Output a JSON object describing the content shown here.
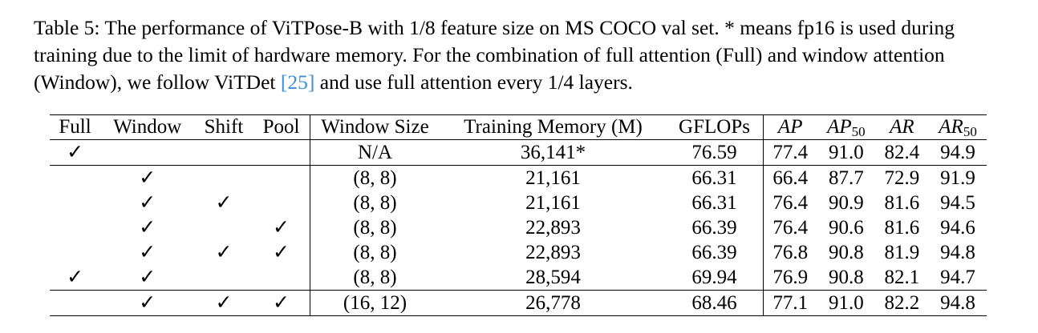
{
  "caption": {
    "prefix": "Table 5: The performance of ViTPose-B with 1/8 feature size on MS COCO val set. * means fp16 is used during training due to the limit of hardware memory. For the combination of full attention (Full) and window attention (Window), we follow ViTDet ",
    "cite_open": "[",
    "cite_num": "25",
    "cite_close": "]",
    "suffix": " and use full attention every 1/4 layers."
  },
  "table": {
    "headers": {
      "full": "Full",
      "window": "Window",
      "shift": "Shift",
      "pool": "Pool",
      "window_size": "Window Size",
      "memory": "Training Memory (M)",
      "gflops": "GFLOPs",
      "ap": "AP",
      "ap50_base": "AP",
      "ap50_sub": "50",
      "ar": "AR",
      "ar50_base": "AR",
      "ar50_sub": "50"
    },
    "rows": [
      {
        "full": "✓",
        "window": "",
        "shift": "",
        "pool": "",
        "window_size": "N/A",
        "memory": "36,141*",
        "gflops": "76.59",
        "ap": "77.4",
        "ap50": "91.0",
        "ar": "82.4",
        "ar50": "94.9"
      },
      {
        "full": "",
        "window": "✓",
        "shift": "",
        "pool": "",
        "window_size": "(8, 8)",
        "memory": "21,161",
        "gflops": "66.31",
        "ap": "66.4",
        "ap50": "87.7",
        "ar": "72.9",
        "ar50": "91.9"
      },
      {
        "full": "",
        "window": "✓",
        "shift": "✓",
        "pool": "",
        "window_size": "(8, 8)",
        "memory": "21,161",
        "gflops": "66.31",
        "ap": "76.4",
        "ap50": "90.9",
        "ar": "81.6",
        "ar50": "94.5"
      },
      {
        "full": "",
        "window": "✓",
        "shift": "",
        "pool": "✓",
        "window_size": "(8, 8)",
        "memory": "22,893",
        "gflops": "66.39",
        "ap": "76.4",
        "ap50": "90.6",
        "ar": "81.6",
        "ar50": "94.6"
      },
      {
        "full": "",
        "window": "✓",
        "shift": "✓",
        "pool": "✓",
        "window_size": "(8, 8)",
        "memory": "22,893",
        "gflops": "66.39",
        "ap": "76.8",
        "ap50": "90.8",
        "ar": "81.9",
        "ar50": "94.8"
      },
      {
        "full": "✓",
        "window": "✓",
        "shift": "",
        "pool": "",
        "window_size": "(8, 8)",
        "memory": "28,594",
        "gflops": "69.94",
        "ap": "76.9",
        "ap50": "90.8",
        "ar": "82.1",
        "ar50": "94.7"
      },
      {
        "full": "",
        "window": "✓",
        "shift": "✓",
        "pool": "✓",
        "window_size": "(16, 12)",
        "memory": "26,778",
        "gflops": "68.46",
        "ap": "77.1",
        "ap50": "91.0",
        "ar": "82.2",
        "ar50": "94.8"
      }
    ]
  }
}
